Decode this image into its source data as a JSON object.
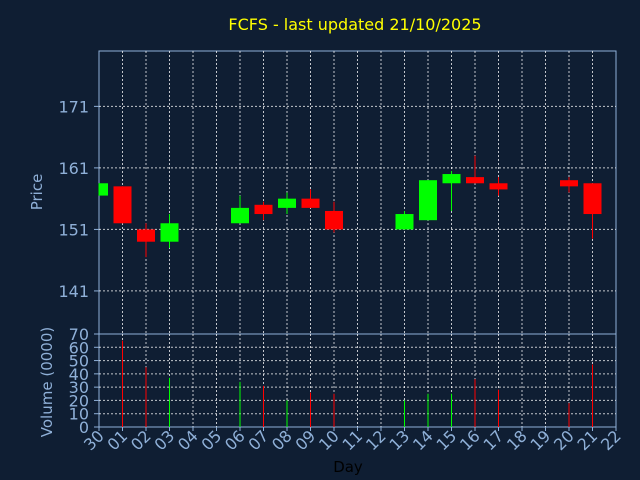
{
  "chart_data": {
    "type": "candlestick",
    "title": "FCFS - last updated 21/10/2025",
    "xlabel": "Day",
    "price_panel": {
      "ylabel": "Price",
      "ylim": [
        134,
        180
      ],
      "yticks": [
        141,
        151,
        161,
        171
      ]
    },
    "volume_panel": {
      "ylabel": "Volume (0000)",
      "ylim": [
        0,
        70
      ],
      "yticks": [
        0,
        10,
        20,
        30,
        40,
        50,
        60,
        70
      ]
    },
    "grid": true,
    "x_tick_labels": [
      "30",
      "01",
      "02",
      "03",
      "04",
      "05",
      "06",
      "07",
      "08",
      "09",
      "10",
      "11",
      "12",
      "13",
      "14",
      "15",
      "16",
      "17",
      "18",
      "19",
      "20",
      "21",
      "22"
    ],
    "candles": [
      {
        "x": 0,
        "open": 156.5,
        "high": 158.5,
        "low": 156.5,
        "close": 158.5,
        "volume": 0
      },
      {
        "x": 1,
        "open": 158.0,
        "high": 158.0,
        "low": 152.0,
        "close": 152.0,
        "volume": 65
      },
      {
        "x": 2,
        "open": 151.0,
        "high": 152.0,
        "low": 146.5,
        "close": 149.0,
        "volume": 45
      },
      {
        "x": 3,
        "open": 149.0,
        "high": 153.5,
        "low": 148.0,
        "close": 152.0,
        "volume": 37
      },
      {
        "x": 6,
        "open": 152.0,
        "high": 156.5,
        "low": 152.0,
        "close": 154.5,
        "volume": 34
      },
      {
        "x": 7,
        "open": 155.0,
        "high": 155.5,
        "low": 152.5,
        "close": 153.5,
        "volume": 31
      },
      {
        "x": 8,
        "open": 154.5,
        "high": 157.0,
        "low": 153.5,
        "close": 156.0,
        "volume": 20
      },
      {
        "x": 9,
        "open": 156.0,
        "high": 157.5,
        "low": 154.5,
        "close": 154.5,
        "volume": 26
      },
      {
        "x": 10,
        "open": 154.0,
        "high": 155.5,
        "low": 150.5,
        "close": 151.0,
        "volume": 25
      },
      {
        "x": 13,
        "open": 151.0,
        "high": 154.0,
        "low": 151.0,
        "close": 153.5,
        "volume": 20
      },
      {
        "x": 14,
        "open": 152.5,
        "high": 159.0,
        "low": 152.5,
        "close": 159.0,
        "volume": 25
      },
      {
        "x": 15,
        "open": 158.5,
        "high": 160.5,
        "low": 154.0,
        "close": 160.0,
        "volume": 25
      },
      {
        "x": 16,
        "open": 159.5,
        "high": 163.0,
        "low": 158.5,
        "close": 158.5,
        "volume": 36
      },
      {
        "x": 17,
        "open": 158.5,
        "high": 159.5,
        "low": 156.5,
        "close": 157.5,
        "volume": 28
      },
      {
        "x": 20,
        "open": 159.0,
        "high": 159.5,
        "low": 157.0,
        "close": 158.0,
        "volume": 18
      },
      {
        "x": 21,
        "open": 158.5,
        "high": 158.5,
        "low": 149.5,
        "close": 153.5,
        "volume": 47
      }
    ],
    "colors": {
      "background": "#0f1e33",
      "axis": "#8fb0d8",
      "grid": "#ffffff",
      "title": "#ffff00",
      "up": "#00ff00",
      "down": "#ff0000",
      "tick_text": "#8fb0d8",
      "xlabel": "#000000"
    }
  }
}
